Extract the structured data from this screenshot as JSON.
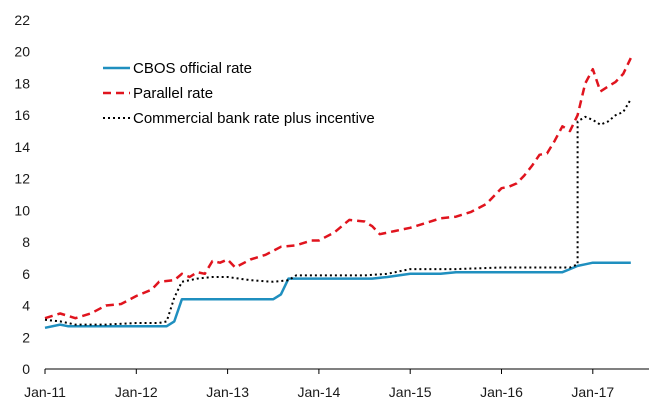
{
  "chart_data": {
    "type": "line",
    "title": "",
    "xlabel": "",
    "ylabel": "",
    "x_tick_labels": [
      "Jan-11",
      "Jan-12",
      "Jan-13",
      "Jan-14",
      "Jan-15",
      "Jan-16",
      "Jan-17"
    ],
    "y_ticks": [
      0,
      2,
      4,
      6,
      8,
      10,
      12,
      14,
      16,
      18,
      20,
      22
    ],
    "ylim": [
      0,
      22
    ],
    "xlim": [
      "Jan-11",
      "Jun-17"
    ],
    "grid": false,
    "legend_position": "top-left",
    "series": [
      {
        "name": "CBOS official rate",
        "color": "#1f8fbf",
        "style": "solid",
        "points": [
          [
            "Jan-11",
            2.6
          ],
          [
            "Mar-11",
            2.8
          ],
          [
            "Apr-11",
            2.7
          ],
          [
            "May-11",
            2.7
          ],
          [
            "Jun-11",
            2.7
          ],
          [
            "Jan-12",
            2.7
          ],
          [
            "Apr-12",
            2.7
          ],
          [
            "May-12",
            2.7
          ],
          [
            "Jun-12",
            3.0
          ],
          [
            "Jul-12",
            4.4
          ],
          [
            "Jan-13",
            4.4
          ],
          [
            "Jun-13",
            4.4
          ],
          [
            "Jul-13",
            4.4
          ],
          [
            "Aug-13",
            4.7
          ],
          [
            "Sep-13",
            5.7
          ],
          [
            "Jan-14",
            5.7
          ],
          [
            "Aug-14",
            5.7
          ],
          [
            "Oct-14",
            5.8
          ],
          [
            "Jan-15",
            6.0
          ],
          [
            "May-15",
            6.0
          ],
          [
            "Jul-15",
            6.1
          ],
          [
            "Jan-16",
            6.1
          ],
          [
            "Jul-16",
            6.1
          ],
          [
            "Sep-16",
            6.1
          ],
          [
            "Oct-16",
            6.3
          ],
          [
            "Nov-16",
            6.5
          ],
          [
            "Dec-16",
            6.6
          ],
          [
            "Jan-17",
            6.7
          ],
          [
            "Feb-17",
            6.7
          ],
          [
            "Jun-17",
            6.7
          ]
        ]
      },
      {
        "name": "Parallel rate",
        "color": "#e0141e",
        "style": "dashed",
        "points": [
          [
            "Jan-11",
            3.2
          ],
          [
            "Mar-11",
            3.5
          ],
          [
            "May-11",
            3.2
          ],
          [
            "Jul-11",
            3.5
          ],
          [
            "Sep-11",
            4.0
          ],
          [
            "Nov-11",
            4.1
          ],
          [
            "Jan-12",
            4.6
          ],
          [
            "Mar-12",
            5.0
          ],
          [
            "Apr-12",
            5.5
          ],
          [
            "Jun-12",
            5.6
          ],
          [
            "Jul-12",
            6.0
          ],
          [
            "Aug-12",
            5.8
          ],
          [
            "Sep-12",
            6.1
          ],
          [
            "Oct-12",
            6.0
          ],
          [
            "Nov-12",
            6.8
          ],
          [
            "Dec-12",
            6.7
          ],
          [
            "Jan-13",
            6.9
          ],
          [
            "Feb-13",
            6.4
          ],
          [
            "Apr-13",
            6.9
          ],
          [
            "Jun-13",
            7.2
          ],
          [
            "Aug-13",
            7.7
          ],
          [
            "Oct-13",
            7.8
          ],
          [
            "Dec-13",
            8.1
          ],
          [
            "Jan-14",
            8.1
          ],
          [
            "Mar-14",
            8.6
          ],
          [
            "May-14",
            9.4
          ],
          [
            "Jul-14",
            9.3
          ],
          [
            "Aug-14",
            9.0
          ],
          [
            "Sep-14",
            8.5
          ],
          [
            "Nov-14",
            8.7
          ],
          [
            "Jan-15",
            8.9
          ],
          [
            "Mar-15",
            9.2
          ],
          [
            "May-15",
            9.5
          ],
          [
            "Jul-15",
            9.6
          ],
          [
            "Sep-15",
            9.9
          ],
          [
            "Nov-15",
            10.4
          ],
          [
            "Jan-16",
            11.4
          ],
          [
            "Feb-16",
            11.5
          ],
          [
            "Mar-16",
            11.7
          ],
          [
            "Apr-16",
            12.2
          ],
          [
            "May-16",
            12.8
          ],
          [
            "Jun-16",
            13.5
          ],
          [
            "Jul-16",
            13.6
          ],
          [
            "Aug-16",
            14.4
          ],
          [
            "Sep-16",
            15.3
          ],
          [
            "Oct-16",
            15.0
          ],
          [
            "Nov-16",
            16.0
          ],
          [
            "Dec-16",
            18.0
          ],
          [
            "Jan-17",
            18.9
          ],
          [
            "Feb-17",
            17.5
          ],
          [
            "Mar-17",
            17.8
          ],
          [
            "Apr-17",
            18.1
          ],
          [
            "May-17",
            18.6
          ],
          [
            "Jun-17",
            19.6
          ]
        ]
      },
      {
        "name": "Commercial bank rate plus incentive",
        "color": "#000000",
        "style": "dotted",
        "points": [
          [
            "Jan-11",
            3.1
          ],
          [
            "Mar-11",
            3.0
          ],
          [
            "May-11",
            2.8
          ],
          [
            "Jul-11",
            2.8
          ],
          [
            "Sep-11",
            2.8
          ],
          [
            "Jan-12",
            2.9
          ],
          [
            "Apr-12",
            2.9
          ],
          [
            "May-12",
            3.0
          ],
          [
            "Jun-12",
            4.5
          ],
          [
            "Jul-12",
            5.5
          ],
          [
            "Sep-12",
            5.7
          ],
          [
            "Nov-12",
            5.8
          ],
          [
            "Jan-13",
            5.8
          ],
          [
            "Apr-13",
            5.6
          ],
          [
            "Jul-13",
            5.5
          ],
          [
            "Sep-13",
            5.6
          ],
          [
            "Oct-13",
            5.9
          ],
          [
            "Jan-14",
            5.9
          ],
          [
            "Jul-14",
            5.9
          ],
          [
            "Oct-14",
            6.0
          ],
          [
            "Jan-15",
            6.3
          ],
          [
            "Jul-15",
            6.3
          ],
          [
            "Jan-16",
            6.4
          ],
          [
            "Sep-16",
            6.4
          ],
          [
            "Oct-16",
            6.4
          ],
          [
            "Nov-16",
            6.6
          ],
          [
            "Nov-16",
            15.6
          ],
          [
            "Dec-16",
            15.9
          ],
          [
            "Jan-17",
            15.7
          ],
          [
            "Feb-17",
            15.4
          ],
          [
            "Mar-17",
            15.6
          ],
          [
            "Apr-17",
            16.0
          ],
          [
            "May-17",
            16.2
          ],
          [
            "Jun-17",
            17.0
          ]
        ]
      }
    ]
  }
}
